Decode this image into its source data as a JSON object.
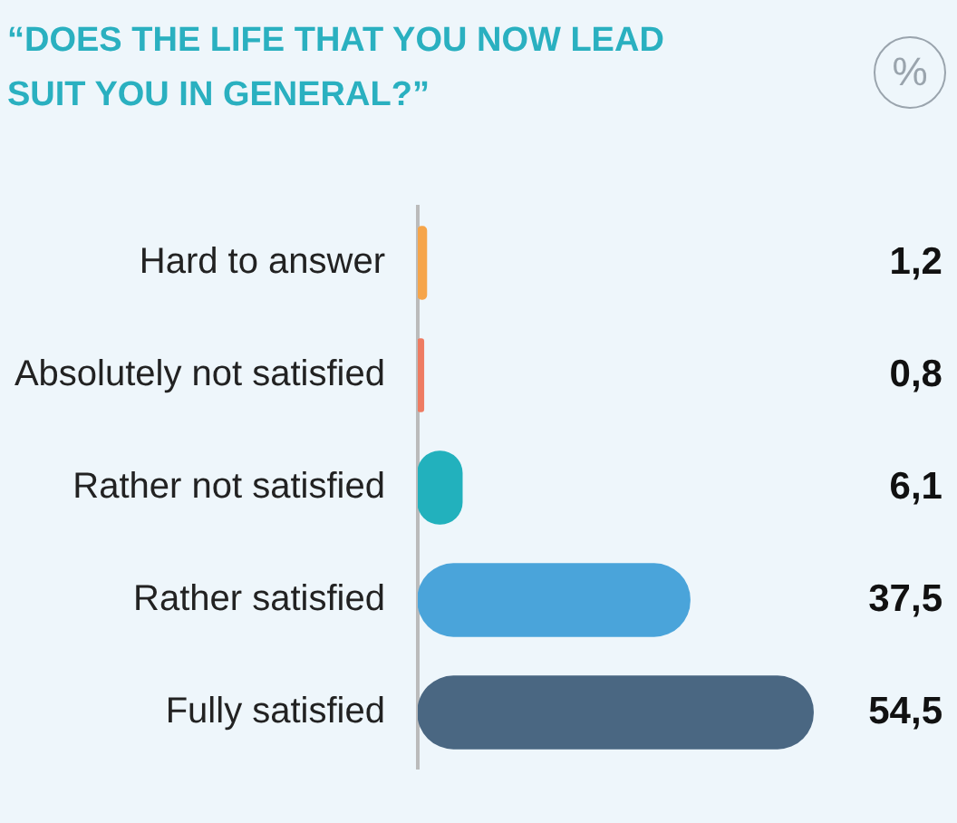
{
  "chart_data": {
    "type": "bar",
    "orientation": "horizontal",
    "title": "“DOES THE LIFE THAT YOU NOW LEAD SUIT YOU IN GENERAL?”",
    "categories": [
      "Hard to answer",
      "Absolutely not satisfied",
      "Rather not satisfied",
      "Rather satisfied",
      "Fully satisfied"
    ],
    "values": [
      1.2,
      0.8,
      6.1,
      37.5,
      54.5
    ],
    "value_labels": [
      "1,2",
      "0,8",
      "6,1",
      "37,5",
      "54,5"
    ],
    "colors": [
      "#f6a54a",
      "#ee7b62",
      "#22b1bd",
      "#4aa4da",
      "#4a6782"
    ],
    "annotations": [
      "%"
    ]
  }
}
